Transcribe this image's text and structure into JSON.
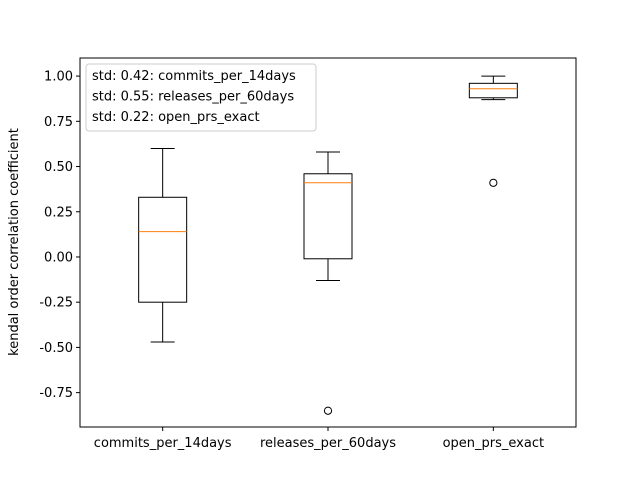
{
  "chart_data": {
    "type": "box",
    "title": "",
    "xlabel": "",
    "ylabel": "kendal order correlation coefficient",
    "ylim": [
      -0.94,
      1.1
    ],
    "yticks": [
      "-0.75",
      "-0.50",
      "-0.25",
      "0.00",
      "0.25",
      "0.50",
      "0.75",
      "1.00"
    ],
    "ytick_values": [
      -0.75,
      -0.5,
      -0.25,
      0.0,
      0.25,
      0.5,
      0.75,
      1.0
    ],
    "categories": [
      "commits_per_14days",
      "releases_per_60days",
      "open_prs_exact"
    ],
    "boxes": [
      {
        "whisker_low": -0.47,
        "q1": -0.25,
        "median": 0.14,
        "q3": 0.33,
        "whisker_high": 0.6,
        "outliers": []
      },
      {
        "whisker_low": -0.13,
        "q1": -0.01,
        "median": 0.41,
        "q3": 0.46,
        "whisker_high": 0.58,
        "outliers": [
          -0.85
        ]
      },
      {
        "whisker_low": 0.87,
        "q1": 0.88,
        "median": 0.93,
        "q3": 0.96,
        "whisker_high": 1.0,
        "outliers": [
          0.41
        ]
      }
    ],
    "legend": {
      "placement": "upper-left",
      "entries": [
        "std: 0.42: commits_per_14days",
        "std: 0.55: releases_per_60days",
        "std: 0.22: open_prs_exact"
      ]
    },
    "colors": {
      "box": "#000000",
      "median": "#ff7f0e"
    },
    "grid": false
  }
}
